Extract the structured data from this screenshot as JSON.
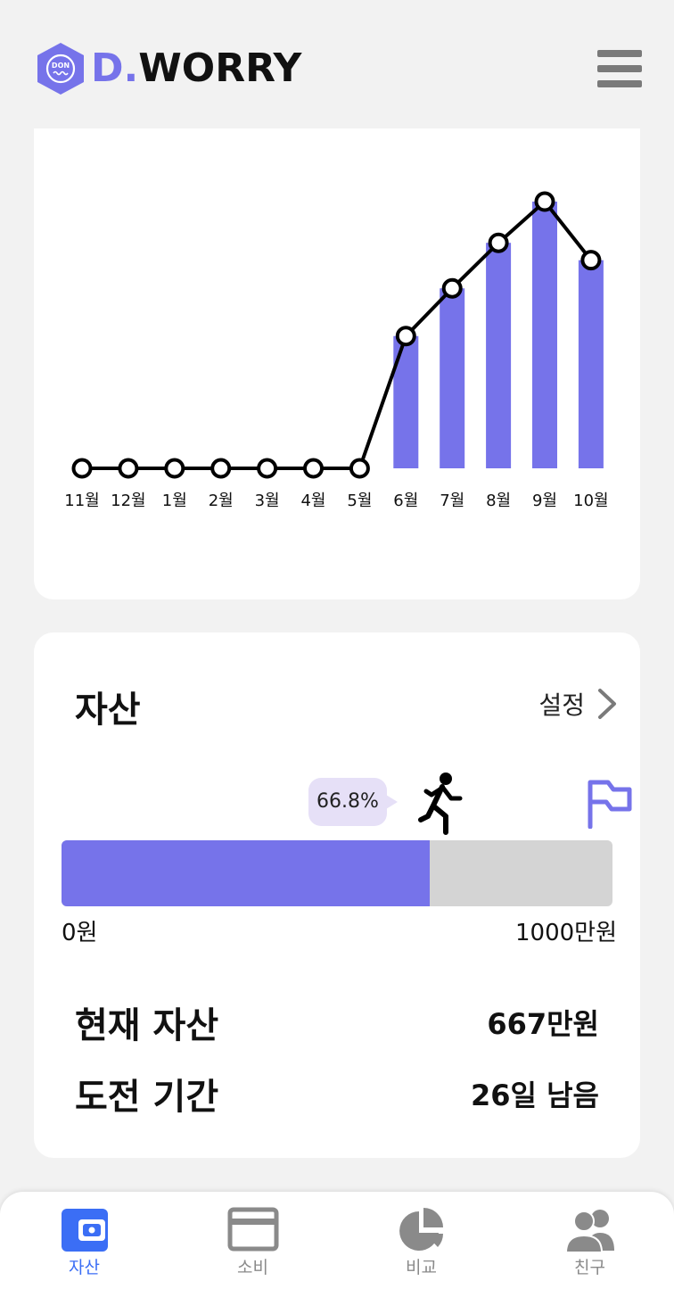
{
  "header": {
    "logo_badge": "DON",
    "logo_d": "D",
    "logo_dot": ".",
    "logo_worry": "WORRY",
    "brand_color": "#7673ea"
  },
  "chart_data": {
    "type": "bar",
    "categories": [
      "11월",
      "12월",
      "1월",
      "2월",
      "3월",
      "4월",
      "5월",
      "6월",
      "7월",
      "8월",
      "9월",
      "10월"
    ],
    "values": [
      0,
      0,
      0,
      0,
      0,
      0,
      0,
      305,
      415,
      520,
      615,
      480
    ],
    "ylim": [
      0,
      650
    ],
    "grid": false,
    "bar_color": "#7673ea",
    "line_color": "#000000"
  },
  "asset": {
    "title": "자산",
    "settings_label": "설정",
    "progress_percent": 66.8,
    "progress_label": "66.8%",
    "min_label": "0원",
    "max_label": "1000만원",
    "current_label": "현재 자산",
    "current_value": "667만원",
    "period_label": "도전 기간",
    "period_value": "26일 남음"
  },
  "nav": {
    "active_color": "#3b6ef5",
    "items": [
      {
        "label": "자산",
        "icon": "wallet-icon"
      },
      {
        "label": "소비",
        "icon": "card-icon"
      },
      {
        "label": "비교",
        "icon": "pie-chart-icon"
      },
      {
        "label": "친구",
        "icon": "friends-icon"
      }
    ]
  }
}
